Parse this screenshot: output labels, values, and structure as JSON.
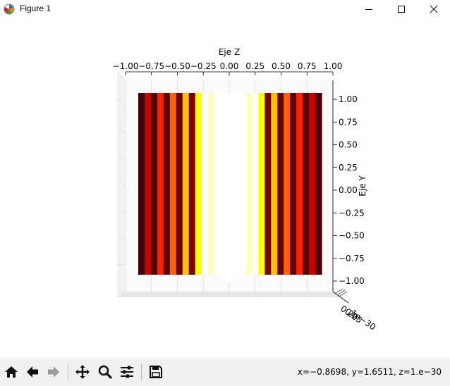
{
  "window": {
    "title": "Figure 1",
    "icon": "matplotlib-icon",
    "controls": [
      "minimize-icon",
      "maximize-icon",
      "close-icon"
    ]
  },
  "chart_data": {
    "type": "heatmap",
    "title": "Eje Z",
    "ylabel": "Eje Y",
    "xlim": [
      -1.0,
      1.0
    ],
    "ylim": [
      -1.0,
      1.0
    ],
    "x_ticks": [
      "−1.00",
      "−0.75",
      "−0.50",
      "−0.25",
      "0.00",
      "0.25",
      "0.50",
      "0.75",
      "1.00"
    ],
    "y_ticks": [
      "1.00",
      "0.75",
      "0.50",
      "0.25",
      "0.00",
      "−0.25",
      "−0.50",
      "−0.75",
      "−1.00"
    ],
    "z_tick_labels": [
      "0.20",
      "0.25",
      "1e−30"
    ],
    "colormap": "hot",
    "stripes_x": [
      -0.88,
      -0.81,
      -0.75,
      -0.69,
      -0.62,
      -0.56,
      -0.5,
      -0.44,
      -0.38,
      -0.31,
      -0.25,
      -0.19,
      -0.12,
      -0.06,
      0.0,
      0.06,
      0.12,
      0.19,
      0.25,
      0.31,
      0.38,
      0.44,
      0.5,
      0.56,
      0.62,
      0.69,
      0.75,
      0.81,
      0.88
    ],
    "intensity": [
      0.05,
      0.3,
      0.08,
      0.45,
      0.1,
      0.55,
      0.12,
      0.7,
      0.15,
      0.8,
      1.0,
      0.95,
      0.0,
      0.0,
      0.0,
      0.0,
      0.0,
      0.95,
      1.0,
      0.8,
      0.15,
      0.7,
      0.12,
      0.55,
      0.1,
      0.45,
      0.08,
      0.3,
      0.05
    ]
  },
  "toolbar": {
    "buttons": [
      {
        "name": "home-button",
        "icon": "home-icon"
      },
      {
        "name": "back-button",
        "icon": "arrow-left-icon"
      },
      {
        "name": "forward-button",
        "icon": "arrow-right-icon"
      },
      {
        "name": "pan-button",
        "icon": "move-icon"
      },
      {
        "name": "zoom-button",
        "icon": "magnifier-icon"
      },
      {
        "name": "configure-button",
        "icon": "sliders-icon"
      },
      {
        "name": "save-button",
        "icon": "floppy-icon"
      }
    ],
    "coords": "x=−0.8698, y=1.6511, z=1.e−30"
  }
}
